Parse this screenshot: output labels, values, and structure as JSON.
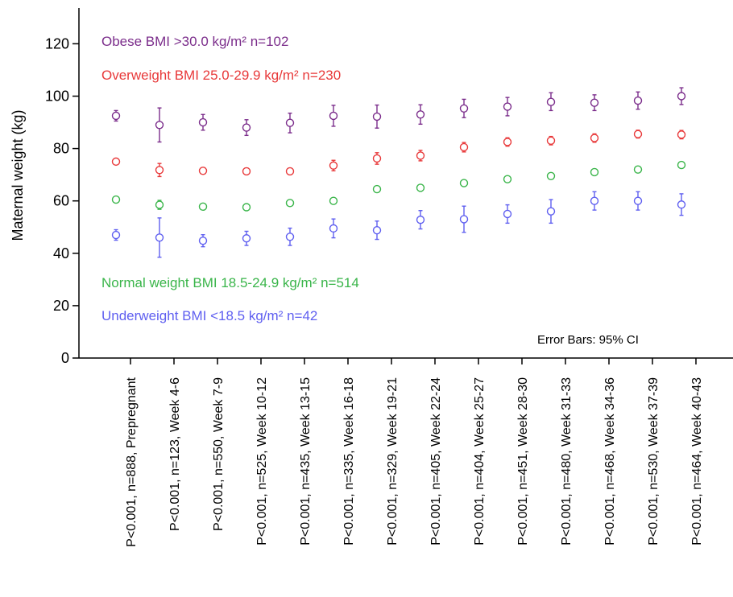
{
  "chart_data": {
    "type": "scatter",
    "ylabel": "Maternal weight (kg)",
    "ylim": [
      0,
      130
    ],
    "yticks": [
      0,
      20,
      40,
      60,
      80,
      100,
      120
    ],
    "categories": [
      "P<0.001, n=888, Prepregnant",
      "P<0.001, n=123, Week 4-6",
      "P<0.001, n=550, Week 7-9",
      "P<0.001, n=525, Week 10-12",
      "P<0.001, n=435, Week 13-15",
      "P<0.001, n=335, Week 16-18",
      "P<0.001, n=329, Week 19-21",
      "P<0.001, n=405, Week 22-24",
      "P<0.001, n=404, Week 25-27",
      "P<0.001, n=451, Week 28-30",
      "P<0.001, n=480, Week 31-33",
      "P<0.001, n=468, Week 34-36",
      "P<0.001, n=530, Week 37-39",
      "P<0.001, n=464, Week 40-43"
    ],
    "series": [
      {
        "name": "Obese BMI >30.0 kg/m² n=102",
        "color": "#7b2d8b",
        "values": [
          92.5,
          89,
          90,
          88,
          89.8,
          92.5,
          92.2,
          93,
          95.3,
          96,
          97.8,
          97.5,
          98.3,
          100
        ],
        "ci": [
          [
            90.5,
            94.5
          ],
          [
            82.5,
            95.5
          ],
          [
            87,
            93
          ],
          [
            85,
            91
          ],
          [
            86,
            93.5
          ],
          [
            88.5,
            96.5
          ],
          [
            87.8,
            96.6
          ],
          [
            89.3,
            96.7
          ],
          [
            91.8,
            98.8
          ],
          [
            92.5,
            99.5
          ],
          [
            94.5,
            101.3
          ],
          [
            94.5,
            100.5
          ],
          [
            95,
            101.6
          ],
          [
            96.8,
            103.2
          ]
        ]
      },
      {
        "name": "Overweight BMI 25.0-29.9 kg/m² n=230",
        "color": "#e8393a",
        "values": [
          75,
          71.8,
          71.5,
          71.3,
          71.3,
          73.5,
          76.2,
          77.3,
          80.5,
          82.5,
          83,
          84,
          85.5,
          85.3
        ],
        "ci": [
          [
            74,
            76
          ],
          [
            69.3,
            74.3
          ],
          [
            70.3,
            72.7
          ],
          [
            70.1,
            72.5
          ],
          [
            70.1,
            72.5
          ],
          [
            71.5,
            75.5
          ],
          [
            74,
            78.4
          ],
          [
            75.3,
            79.3
          ],
          [
            78.7,
            82.3
          ],
          [
            80.9,
            84.1
          ],
          [
            81.4,
            84.6
          ],
          [
            82.4,
            85.6
          ],
          [
            84,
            87
          ],
          [
            83.7,
            86.9
          ]
        ]
      },
      {
        "name": "Normal weight BMI 18.5-24.9 kg/m² n=514",
        "color": "#3ab54a",
        "values": [
          60.5,
          58.5,
          57.8,
          57.6,
          59.2,
          60,
          64.5,
          65,
          66.8,
          68.3,
          69.5,
          71,
          72,
          73.7
        ],
        "ci": [
          [
            59.5,
            61.5
          ],
          [
            56.8,
            60.2
          ],
          [
            56.8,
            58.8
          ],
          [
            56.6,
            58.6
          ],
          [
            58.2,
            60.2
          ],
          [
            59,
            61
          ],
          [
            63.5,
            65.5
          ],
          [
            64,
            66
          ],
          [
            65.8,
            67.8
          ],
          [
            67.3,
            69.3
          ],
          [
            68.3,
            70.7
          ],
          [
            70,
            72
          ],
          [
            71,
            73
          ],
          [
            72.7,
            74.7
          ]
        ]
      },
      {
        "name": "Underweight BMI <18.5 kg/m² n=42",
        "color": "#5f5ff0",
        "values": [
          47,
          46,
          44.8,
          45.7,
          46.3,
          49.5,
          48.8,
          52.8,
          53,
          55,
          56,
          60,
          60,
          58.6
        ],
        "ci": [
          [
            45,
            49
          ],
          [
            38.5,
            53.5
          ],
          [
            42.5,
            47.1
          ],
          [
            43,
            48.4
          ],
          [
            43,
            49.6
          ],
          [
            45.9,
            53.1
          ],
          [
            45.3,
            52.3
          ],
          [
            49.3,
            56.3
          ],
          [
            48,
            58
          ],
          [
            51.5,
            58.5
          ],
          [
            51.5,
            60.5
          ],
          [
            56.5,
            63.5
          ],
          [
            56.5,
            63.5
          ],
          [
            54.5,
            62.7
          ]
        ]
      }
    ],
    "annotation": "Error Bars: 95% CI"
  }
}
